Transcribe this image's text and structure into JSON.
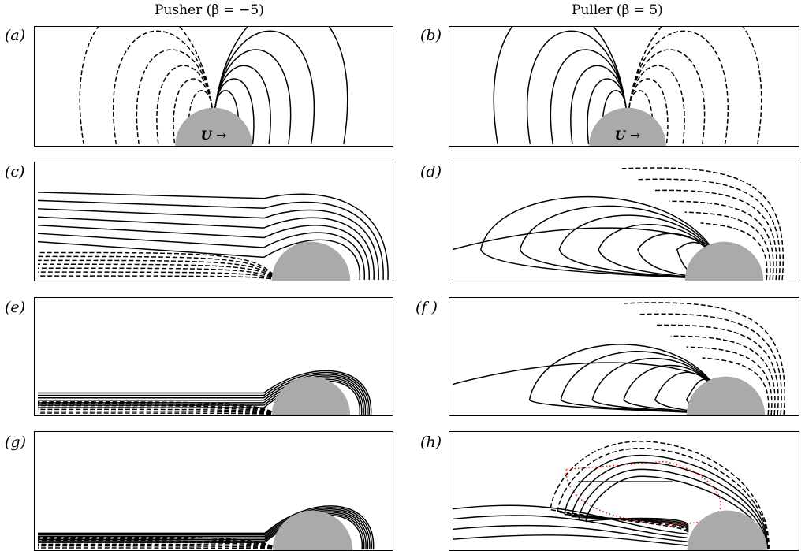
{
  "figure": {
    "columns": [
      {
        "title": "Pusher (β = −5)"
      },
      {
        "title": "Puller (β = 5)"
      }
    ],
    "panels": [
      {
        "label": "(a)",
        "kind": "dipole",
        "dir": -1,
        "body_label": "U →"
      },
      {
        "label": "(b)",
        "kind": "dipole",
        "dir": 1,
        "body_label": "U →"
      },
      {
        "label": "(c)",
        "kind": "wake_pusher",
        "level": 1
      },
      {
        "label": "(d)",
        "kind": "wake_puller",
        "level": 1
      },
      {
        "label": "(e)",
        "kind": "wake_pusher",
        "level": 2
      },
      {
        "label": "(f )",
        "kind": "wake_puller",
        "level": 2
      },
      {
        "label": "(g)",
        "kind": "wake_pusher",
        "level": 3
      },
      {
        "label": "(h)",
        "kind": "wake_puller",
        "level": 3,
        "red_dotted_contour": true
      }
    ],
    "colors": {
      "body_fill": "#aaaaaa",
      "line": "#000000",
      "red_dotted": "#e01010"
    }
  }
}
